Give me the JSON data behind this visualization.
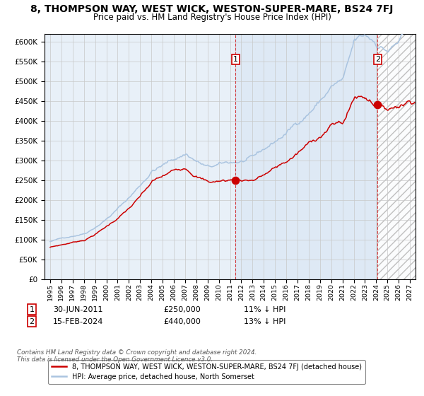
{
  "title": "8, THOMPSON WAY, WEST WICK, WESTON-SUPER-MARE, BS24 7FJ",
  "subtitle": "Price paid vs. HM Land Registry's House Price Index (HPI)",
  "title_fontsize": 10,
  "subtitle_fontsize": 8.5,
  "bg_color": "#ffffff",
  "plot_bg_color": "#e8f0f8",
  "grid_color": "#c8c8c8",
  "hpi_color": "#aac4e0",
  "price_color": "#cc0000",
  "sale1_date_num": 2011.5,
  "sale1_price": 250000,
  "sale2_date_num": 2024.12,
  "sale2_price": 440000,
  "ylim_min": 0,
  "ylim_max": 620000,
  "xmin": 1994.5,
  "xmax": 2027.5,
  "yticks": [
    0,
    50000,
    100000,
    150000,
    200000,
    250000,
    300000,
    350000,
    400000,
    450000,
    500000,
    550000,
    600000
  ],
  "xticks": [
    1995,
    1996,
    1997,
    1998,
    1999,
    2000,
    2001,
    2002,
    2003,
    2004,
    2005,
    2006,
    2007,
    2008,
    2009,
    2010,
    2011,
    2012,
    2013,
    2014,
    2015,
    2016,
    2017,
    2018,
    2019,
    2020,
    2021,
    2022,
    2023,
    2024,
    2025,
    2026,
    2027
  ],
  "legend_label_red": "8, THOMPSON WAY, WEST WICK, WESTON-SUPER-MARE, BS24 7FJ (detached house)",
  "legend_label_blue": "HPI: Average price, detached house, North Somerset",
  "ann1_box": "1",
  "ann1_date": "30-JUN-2011",
  "ann1_price": "£250,000",
  "ann1_hpi": "11% ↓ HPI",
  "ann2_box": "2",
  "ann2_date": "15-FEB-2024",
  "ann2_price": "£440,000",
  "ann2_hpi": "13% ↓ HPI",
  "footnote": "Contains HM Land Registry data © Crown copyright and database right 2024.\nThis data is licensed under the Open Government Licence v3.0."
}
